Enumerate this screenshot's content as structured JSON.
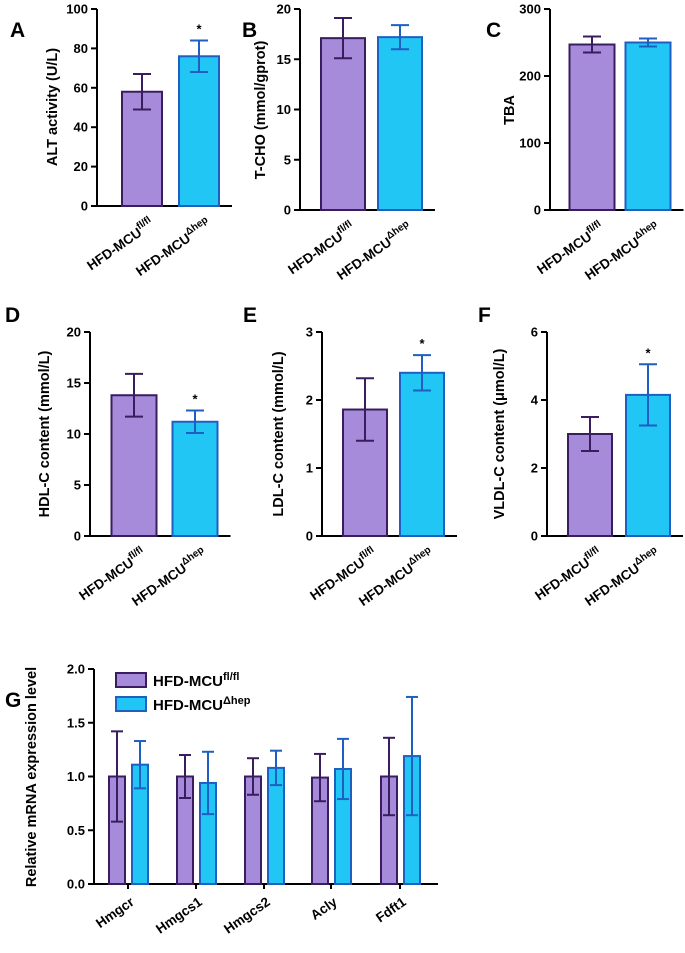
{
  "figure": {
    "group_base": "HFD-MCU",
    "group_sups": [
      "fl/fl",
      "Δhep"
    ],
    "colors": {
      "fill": [
        "#a58bd9",
        "#22c6f5"
      ],
      "stroke": [
        "#3a1d5e",
        "#1f5fc1"
      ],
      "axis": "#000000"
    }
  },
  "chart_data": [
    {
      "panel": "A",
      "type": "bar",
      "ylabel": "ALT activity (U/L)",
      "ylim": [
        0,
        100
      ],
      "yticks": [
        0,
        20,
        40,
        60,
        80,
        100
      ],
      "values": [
        58,
        76
      ],
      "errors": [
        9,
        8
      ],
      "significance": [
        "",
        "*"
      ]
    },
    {
      "panel": "B",
      "type": "bar",
      "ylabel": "T-CHO (mmol/gprot)",
      "ylim": [
        0,
        20
      ],
      "yticks": [
        0,
        5,
        10,
        15,
        20
      ],
      "values": [
        17.1,
        17.2
      ],
      "errors": [
        2.0,
        1.2
      ],
      "significance": [
        "",
        ""
      ]
    },
    {
      "panel": "C",
      "type": "bar",
      "ylabel": "TBA",
      "ylim": [
        0,
        300
      ],
      "yticks": [
        0,
        100,
        200,
        300
      ],
      "values": [
        247,
        250
      ],
      "errors": [
        12,
        6
      ],
      "significance": [
        "",
        ""
      ]
    },
    {
      "panel": "D",
      "type": "bar",
      "ylabel": "HDL-C content (mmol/L)",
      "ylim": [
        0,
        20
      ],
      "yticks": [
        0,
        5,
        10,
        15,
        20
      ],
      "values": [
        13.8,
        11.2
      ],
      "errors": [
        2.1,
        1.1
      ],
      "significance": [
        "",
        "*"
      ]
    },
    {
      "panel": "E",
      "type": "bar",
      "ylabel": "LDL-C content (mmol/L)",
      "ylim": [
        0,
        3
      ],
      "yticks": [
        0,
        1,
        2,
        3
      ],
      "values": [
        1.86,
        2.4
      ],
      "errors": [
        0.46,
        0.26
      ],
      "significance": [
        "",
        "*"
      ]
    },
    {
      "panel": "F",
      "type": "bar",
      "ylabel": "VLDL-C content (μmol/L)",
      "ylim": [
        0,
        6
      ],
      "yticks": [
        0,
        2,
        4,
        6
      ],
      "values": [
        3.0,
        4.15
      ],
      "errors": [
        0.5,
        0.9
      ],
      "significance": [
        "",
        "*"
      ]
    },
    {
      "panel": "G",
      "type": "bar",
      "ylabel": "Relative mRNA expression level",
      "ylim": [
        0,
        2.0
      ],
      "yticks": [
        "0.0",
        "0.5",
        "1.0",
        "1.5",
        "2.0"
      ],
      "categories": [
        "Hmgcr",
        "Hmgcs1",
        "Hmgcs2",
        "Acly",
        "Fdft1"
      ],
      "series": [
        {
          "name": "HFD-MCU fl/fl",
          "values": [
            1.0,
            1.0,
            1.0,
            0.99,
            1.0
          ],
          "errors": [
            0.42,
            0.2,
            0.17,
            0.22,
            0.36
          ]
        },
        {
          "name": "HFD-MCU Δhep",
          "values": [
            1.11,
            0.94,
            1.08,
            1.07,
            1.19
          ],
          "errors": [
            0.22,
            0.29,
            0.16,
            0.28,
            0.55
          ]
        }
      ],
      "legend": "top-left"
    }
  ]
}
